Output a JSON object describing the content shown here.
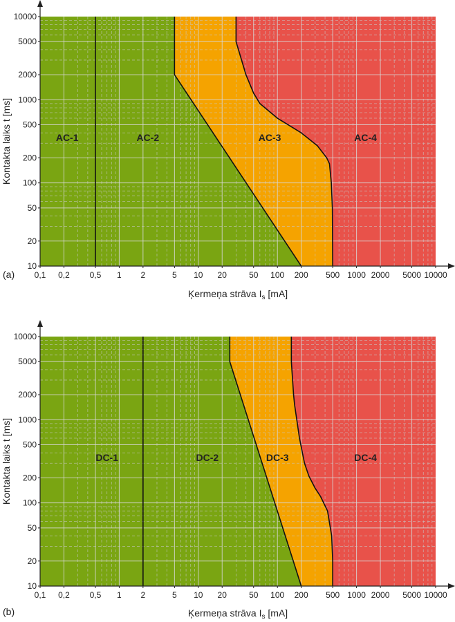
{
  "colors": {
    "zone1": "#7aa512",
    "zone2": "#7aa512",
    "zone3": "#f5a300",
    "zone4": "#e8524a",
    "grid_major": "#d8d8d8",
    "grid_minor": "#c8c8c8",
    "boundary": "#111111",
    "axis": "#222222"
  },
  "chart_data": [
    {
      "type": "area",
      "panel_label": "(a)",
      "xlabel": "Ķermeņa strāva I",
      "xlabel_sub": "s",
      "xlabel_unit": " [mA]",
      "ylabel": "Kontakta laiks t [ms]",
      "x_scale": "log",
      "y_scale": "log",
      "xlim": [
        0.1,
        10000
      ],
      "ylim": [
        10,
        10000
      ],
      "x_ticks": [
        {
          "value": 0.1,
          "label": "0,1"
        },
        {
          "value": 0.2,
          "label": "0,2"
        },
        {
          "value": 0.5,
          "label": "0,5"
        },
        {
          "value": 1,
          "label": "1"
        },
        {
          "value": 2,
          "label": "2"
        },
        {
          "value": 5,
          "label": "5"
        },
        {
          "value": 10,
          "label": "10"
        },
        {
          "value": 20,
          "label": "20"
        },
        {
          "value": 50,
          "label": "50"
        },
        {
          "value": 100,
          "label": "100"
        },
        {
          "value": 200,
          "label": "200"
        },
        {
          "value": 500,
          "label": "500"
        },
        {
          "value": 1000,
          "label": "1000"
        },
        {
          "value": 2000,
          "label": "2000"
        },
        {
          "value": 5000,
          "label": "5000"
        },
        {
          "value": 10000,
          "label": "10000"
        }
      ],
      "y_ticks": [
        {
          "value": 10,
          "label": "10"
        },
        {
          "value": 20,
          "label": "20"
        },
        {
          "value": 50,
          "label": "50"
        },
        {
          "value": 100,
          "label": "100"
        },
        {
          "value": 200,
          "label": "200"
        },
        {
          "value": 500,
          "label": "500"
        },
        {
          "value": 1000,
          "label": "1000"
        },
        {
          "value": 2000,
          "label": "2000"
        },
        {
          "value": 5000,
          "label": "5000"
        },
        {
          "value": 10000,
          "label": "10000"
        }
      ],
      "boundaries": [
        {
          "name": "a",
          "points": [
            [
              0.5,
              10
            ],
            [
              0.5,
              10000
            ]
          ]
        },
        {
          "name": "b",
          "points": [
            [
              200,
              10
            ],
            [
              5,
              2000
            ],
            [
              5,
              10000
            ]
          ]
        },
        {
          "name": "c1",
          "points": [
            [
              500,
              10
            ],
            [
              495,
              50
            ],
            [
              480,
              100
            ],
            [
              455,
              170
            ],
            [
              420,
              200
            ],
            [
              320,
              280
            ],
            [
              200,
              400
            ],
            [
              100,
              600
            ],
            [
              60,
              900
            ],
            [
              50,
              1200
            ],
            [
              40,
              2000
            ],
            [
              30,
              5000
            ],
            [
              30,
              10000
            ]
          ]
        }
      ],
      "zones": [
        {
          "label": "AC-1",
          "x": 0.22,
          "y": 350,
          "fill": "zone1",
          "region": [
            [
              0.1,
              10
            ],
            [
              0.5,
              10
            ],
            [
              0.5,
              10000
            ],
            [
              0.1,
              10000
            ]
          ]
        },
        {
          "label": "AC-2",
          "x": 2.3,
          "y": 350,
          "fill": "zone2",
          "region": [
            [
              0.5,
              10
            ],
            [
              200,
              10
            ],
            [
              5,
              2000
            ],
            [
              5,
              10000
            ],
            [
              0.5,
              10000
            ]
          ]
        },
        {
          "label": "AC-3",
          "x": 80,
          "y": 350,
          "fill": "zone3",
          "region": [
            [
              200,
              10
            ],
            [
              500,
              10
            ],
            [
              495,
              50
            ],
            [
              480,
              100
            ],
            [
              455,
              170
            ],
            [
              420,
              200
            ],
            [
              320,
              280
            ],
            [
              200,
              400
            ],
            [
              100,
              600
            ],
            [
              60,
              900
            ],
            [
              50,
              1200
            ],
            [
              40,
              2000
            ],
            [
              30,
              5000
            ],
            [
              30,
              10000
            ],
            [
              5,
              10000
            ],
            [
              5,
              2000
            ]
          ]
        },
        {
          "label": "AC-4",
          "x": 1300,
          "y": 350,
          "fill": "zone4",
          "region": [
            [
              500,
              10
            ],
            [
              10000,
              10
            ],
            [
              10000,
              10000
            ],
            [
              30,
              10000
            ],
            [
              30,
              5000
            ],
            [
              40,
              2000
            ],
            [
              50,
              1200
            ],
            [
              60,
              900
            ],
            [
              100,
              600
            ],
            [
              200,
              400
            ],
            [
              320,
              280
            ],
            [
              420,
              200
            ],
            [
              455,
              170
            ],
            [
              480,
              100
            ],
            [
              495,
              50
            ]
          ]
        }
      ]
    },
    {
      "type": "area",
      "panel_label": "(b)",
      "xlabel": "Ķermeņa strāva I",
      "xlabel_sub": "s",
      "xlabel_unit": " [mA]",
      "ylabel": "Kontakta laiks t [ms]",
      "x_scale": "log",
      "y_scale": "log",
      "xlim": [
        0.1,
        10000
      ],
      "ylim": [
        10,
        10000
      ],
      "x_ticks": [
        {
          "value": 0.1,
          "label": "0,1"
        },
        {
          "value": 0.2,
          "label": "0,2"
        },
        {
          "value": 0.5,
          "label": "0,5"
        },
        {
          "value": 1,
          "label": "1"
        },
        {
          "value": 2,
          "label": "2"
        },
        {
          "value": 5,
          "label": "5"
        },
        {
          "value": 10,
          "label": "10"
        },
        {
          "value": 20,
          "label": "20"
        },
        {
          "value": 50,
          "label": "50"
        },
        {
          "value": 100,
          "label": "100"
        },
        {
          "value": 200,
          "label": "200"
        },
        {
          "value": 500,
          "label": "500"
        },
        {
          "value": 1000,
          "label": "1000"
        },
        {
          "value": 2000,
          "label": "2000"
        },
        {
          "value": 5000,
          "label": "5000"
        },
        {
          "value": 10000,
          "label": "10000"
        }
      ],
      "y_ticks": [
        {
          "value": 10,
          "label": "10"
        },
        {
          "value": 20,
          "label": "20"
        },
        {
          "value": 50,
          "label": "50"
        },
        {
          "value": 100,
          "label": "100"
        },
        {
          "value": 200,
          "label": "200"
        },
        {
          "value": 500,
          "label": "500"
        },
        {
          "value": 1000,
          "label": "1000"
        },
        {
          "value": 2000,
          "label": "2000"
        },
        {
          "value": 5000,
          "label": "5000"
        },
        {
          "value": 10000,
          "label": "10000"
        }
      ],
      "boundaries": [
        {
          "name": "a",
          "points": [
            [
              2,
              10
            ],
            [
              2,
              10000
            ]
          ]
        },
        {
          "name": "b",
          "points": [
            [
              200,
              10
            ],
            [
              25,
              5000
            ],
            [
              25,
              10000
            ]
          ]
        },
        {
          "name": "c1",
          "points": [
            [
              500,
              10
            ],
            [
              500,
              20
            ],
            [
              485,
              40
            ],
            [
              430,
              80
            ],
            [
              350,
              120
            ],
            [
              300,
              150
            ],
            [
              250,
              210
            ],
            [
              220,
              300
            ],
            [
              190,
              600
            ],
            [
              165,
              1500
            ],
            [
              160,
              2000
            ],
            [
              150,
              5000
            ],
            [
              150,
              10000
            ]
          ]
        }
      ],
      "zones": [
        {
          "label": "DC-1",
          "x": 0.7,
          "y": 350,
          "fill": "zone1",
          "region": [
            [
              0.1,
              10
            ],
            [
              2,
              10
            ],
            [
              2,
              10000
            ],
            [
              0.1,
              10000
            ]
          ]
        },
        {
          "label": "DC-2",
          "x": 13,
          "y": 350,
          "fill": "zone2",
          "region": [
            [
              2,
              10
            ],
            [
              200,
              10
            ],
            [
              25,
              5000
            ],
            [
              25,
              10000
            ],
            [
              2,
              10000
            ]
          ]
        },
        {
          "label": "DC-3",
          "x": 100,
          "y": 350,
          "fill": "zone3",
          "region": [
            [
              200,
              10
            ],
            [
              500,
              10
            ],
            [
              500,
              20
            ],
            [
              485,
              40
            ],
            [
              430,
              80
            ],
            [
              350,
              120
            ],
            [
              300,
              150
            ],
            [
              250,
              210
            ],
            [
              220,
              300
            ],
            [
              190,
              600
            ],
            [
              165,
              1500
            ],
            [
              160,
              2000
            ],
            [
              150,
              5000
            ],
            [
              150,
              10000
            ],
            [
              25,
              10000
            ],
            [
              25,
              5000
            ]
          ]
        },
        {
          "label": "DC-4",
          "x": 1300,
          "y": 350,
          "fill": "zone4",
          "region": [
            [
              500,
              10
            ],
            [
              10000,
              10
            ],
            [
              10000,
              10000
            ],
            [
              150,
              10000
            ],
            [
              150,
              5000
            ],
            [
              160,
              2000
            ],
            [
              165,
              1500
            ],
            [
              190,
              600
            ],
            [
              220,
              300
            ],
            [
              250,
              210
            ],
            [
              300,
              150
            ],
            [
              350,
              120
            ],
            [
              430,
              80
            ],
            [
              485,
              40
            ],
            [
              500,
              20
            ]
          ]
        }
      ]
    }
  ]
}
